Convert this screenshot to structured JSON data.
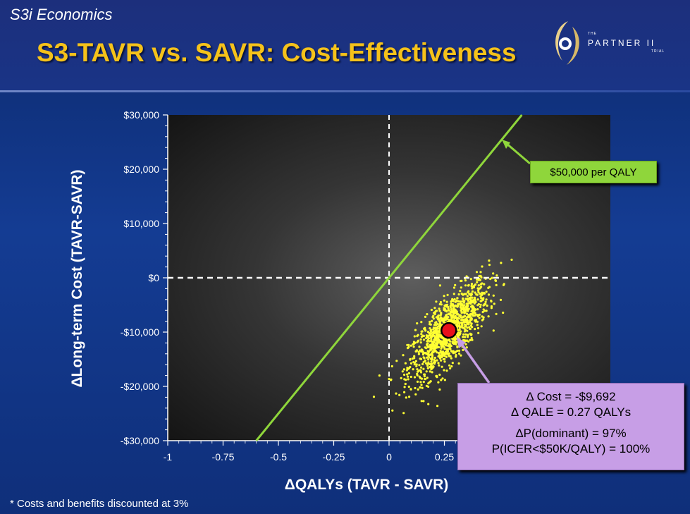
{
  "header": {
    "brand": "S3i Economics",
    "title": "S3-TAVR vs. SAVR: Cost-Effectiveness"
  },
  "logo": {
    "small_text": "THE",
    "main_text": "PARTNER II",
    "sub_text": "TRIAL"
  },
  "footnote": "* Costs and benefits discounted at 3%",
  "colors": {
    "title": "#f5c21a",
    "threshold_line": "#8fd63b",
    "scatter": "#ffff33",
    "mean_point": "#e8101c",
    "stats_box": "#c79ee6"
  },
  "chart_data": {
    "type": "scatter",
    "title": "",
    "xlabel": "ΔQALYs (TAVR - SAVR)",
    "ylabel": "ΔLong-term Cost (TAVR-SAVR)",
    "xlim": [
      -1,
      1
    ],
    "ylim": [
      -30000,
      30000
    ],
    "x_ticks": [
      "-1",
      "-0.75",
      "-0.5",
      "-0.25",
      "0",
      "0.25"
    ],
    "y_ticks": [
      "$30,000",
      "$20,000",
      "$10,000",
      "$0",
      "-$10,000",
      "-$20,000",
      "-$30,000"
    ],
    "grid": false,
    "scatter_cloud": {
      "center": [
        0.27,
        -9692
      ],
      "sd_x": 0.09,
      "sd_y": 4500,
      "correlation": 0.75,
      "count": 1200
    },
    "mean_point": {
      "x": 0.27,
      "y": -9692
    },
    "threshold_line": {
      "label": "$50,000 per QALY",
      "slope_per_qaly": 50000
    },
    "stats": [
      "Δ Cost = -$9,692",
      "Δ QALE = 0.27 QALYs",
      "ΔP(dominant) = 97%",
      "P(ICER<$50K/QALY) = 100%"
    ]
  }
}
